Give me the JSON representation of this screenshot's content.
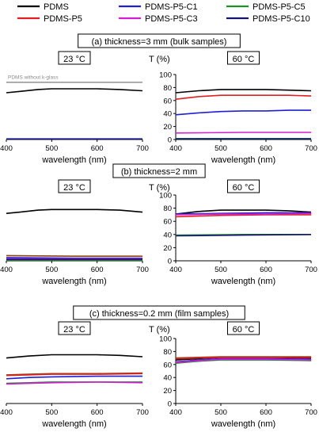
{
  "legend": [
    {
      "label": "PDMS",
      "color": "#000000"
    },
    {
      "label": "PDMS-P5-C1",
      "color": "#1f1fd6"
    },
    {
      "label": "PDMS-P5-C5",
      "color": "#1a8f2c"
    },
    {
      "label": "PDMS-P5",
      "color": "#e02020"
    },
    {
      "label": "PDMS-P5-C3",
      "color": "#d21fd2"
    },
    {
      "label": "PDMS-P5-C10",
      "color": "#141470"
    }
  ],
  "chart_data": [
    {
      "type": "line",
      "panel_title": "(a) thickness=3 mm (bulk samples)",
      "temperature": "23 °C",
      "xlabel": "wavelength (nm)",
      "ylabel": "",
      "xlim": [
        400,
        700
      ],
      "ylim": [
        0,
        100
      ],
      "xticks": [
        400,
        500,
        600,
        700
      ],
      "yticks": [],
      "annotation": {
        "text": "PDMS without k-glass",
        "x": 400,
        "y": 96
      },
      "series": [
        {
          "name": "PDMS without k-glass",
          "color": "#9a9a9a",
          "x": [
            400,
            700
          ],
          "y": [
            88,
            88
          ]
        },
        {
          "name": "PDMS",
          "color": "#000000",
          "x": [
            400,
            430,
            470,
            500,
            550,
            600,
            650,
            700
          ],
          "y": [
            72,
            74,
            77,
            78,
            78,
            78,
            77,
            75
          ]
        },
        {
          "name": "PDMS-P5-C1",
          "color": "#1f1fd6",
          "x": [
            400,
            700
          ],
          "y": [
            1,
            1
          ]
        },
        {
          "name": "PDMS-P5-C10",
          "color": "#141470",
          "x": [
            400,
            700
          ],
          "y": [
            0.6,
            0.6
          ]
        }
      ]
    },
    {
      "type": "line",
      "temperature": "60 °C",
      "xlabel": "wavelength (nm)",
      "ylabel": "T (%)",
      "xlim": [
        400,
        700
      ],
      "ylim": [
        0,
        100
      ],
      "xticks": [
        400,
        500,
        600,
        700
      ],
      "yticks": [
        0,
        20,
        40,
        60,
        80,
        100
      ],
      "series": [
        {
          "name": "PDMS",
          "color": "#000000",
          "x": [
            400,
            450,
            500,
            550,
            600,
            650,
            700
          ],
          "y": [
            72,
            75,
            77,
            77,
            77,
            76,
            75
          ]
        },
        {
          "name": "PDMS-P5",
          "color": "#e02020",
          "x": [
            400,
            450,
            500,
            550,
            600,
            650,
            700
          ],
          "y": [
            62,
            66,
            68,
            68,
            68,
            68,
            67
          ]
        },
        {
          "name": "PDMS-P5-C1",
          "color": "#1f1fd6",
          "x": [
            400,
            450,
            500,
            550,
            600,
            650,
            700
          ],
          "y": [
            38,
            41,
            43,
            44,
            44,
            45,
            45
          ]
        },
        {
          "name": "PDMS-P5-C3",
          "color": "#d21fd2",
          "x": [
            400,
            550,
            700
          ],
          "y": [
            10,
            11,
            11
          ]
        },
        {
          "name": "PDMS-P5-C5",
          "color": "#1a8f2c",
          "x": [
            400,
            700
          ],
          "y": [
            1.5,
            1.5
          ]
        },
        {
          "name": "PDMS-P5-C10",
          "color": "#141470",
          "x": [
            400,
            700
          ],
          "y": [
            0.8,
            0.8
          ]
        }
      ]
    },
    {
      "type": "line",
      "panel_title": "(b) thickness=2 mm",
      "temperature": "23 °C",
      "xlabel": "wavelength (nm)",
      "ylabel": "",
      "xlim": [
        400,
        700
      ],
      "ylim": [
        0,
        100
      ],
      "xticks": [
        400,
        500,
        600,
        700
      ],
      "yticks": [],
      "series": [
        {
          "name": "PDMS",
          "color": "#000000",
          "x": [
            400,
            430,
            470,
            500,
            550,
            600,
            650,
            700
          ],
          "y": [
            72,
            74,
            77,
            78,
            78,
            78,
            77,
            74
          ]
        },
        {
          "name": "PDMS-P5",
          "color": "#8b4513",
          "x": [
            400,
            550,
            700
          ],
          "y": [
            8,
            7,
            7
          ]
        },
        {
          "name": "PDMS-P5-C1",
          "color": "#1f1fd6",
          "x": [
            400,
            550,
            700
          ],
          "y": [
            5,
            4,
            4
          ]
        },
        {
          "name": "PDMS-P5-C3",
          "color": "#d21fd2",
          "x": [
            400,
            550,
            700
          ],
          "y": [
            3,
            3,
            3
          ]
        },
        {
          "name": "PDMS-P5-C5",
          "color": "#1a8f2c",
          "x": [
            400,
            700
          ],
          "y": [
            1,
            1
          ]
        },
        {
          "name": "PDMS-P5-C10",
          "color": "#141470",
          "x": [
            400,
            700
          ],
          "y": [
            2,
            2
          ]
        }
      ]
    },
    {
      "type": "line",
      "temperature": "60 °C",
      "xlabel": "wavelength (nm)",
      "ylabel": "T (%)",
      "xlim": [
        400,
        700
      ],
      "ylim": [
        0,
        100
      ],
      "xticks": [
        400,
        500,
        600,
        700
      ],
      "yticks": [
        0,
        20,
        40,
        60,
        80,
        100
      ],
      "series": [
        {
          "name": "PDMS",
          "color": "#000000",
          "x": [
            400,
            450,
            500,
            550,
            600,
            650,
            700
          ],
          "y": [
            71,
            75,
            77,
            77,
            77,
            76,
            74
          ]
        },
        {
          "name": "PDMS-P5",
          "color": "#e02020",
          "x": [
            400,
            450,
            500,
            600,
            700
          ],
          "y": [
            67,
            68,
            69,
            70,
            70
          ]
        },
        {
          "name": "PDMS-P5-C1",
          "color": "#1f1fd6",
          "x": [
            400,
            500,
            600,
            700
          ],
          "y": [
            71,
            72,
            73,
            73
          ]
        },
        {
          "name": "PDMS-P5-C3",
          "color": "#d21fd2",
          "x": [
            400,
            500,
            600,
            700
          ],
          "y": [
            70,
            71,
            71,
            72
          ]
        },
        {
          "name": "PDMS-P5-C5",
          "color": "#1a8f2c",
          "x": [
            400,
            550,
            700
          ],
          "y": [
            39,
            40,
            40
          ]
        },
        {
          "name": "PDMS-P5-C10",
          "color": "#141470",
          "x": [
            400,
            550,
            700
          ],
          "y": [
            38,
            39,
            40
          ]
        }
      ]
    },
    {
      "type": "line",
      "panel_title": "(c) thickness=0.2 mm (film samples)",
      "temperature": "23 °C",
      "xlabel": "wavelength (nm)",
      "ylabel": "",
      "xlim": [
        400,
        700
      ],
      "ylim": [
        0,
        100
      ],
      "xticks": [
        400,
        500,
        600,
        700
      ],
      "yticks": [],
      "series": [
        {
          "name": "PDMS",
          "color": "#000000",
          "x": [
            400,
            450,
            500,
            550,
            600,
            650,
            700
          ],
          "y": [
            70,
            73,
            75,
            75,
            75,
            74,
            72
          ]
        },
        {
          "name": "PDMS-P5",
          "color": "#8b4513",
          "x": [
            400,
            450,
            500,
            600,
            700
          ],
          "y": [
            44,
            45,
            46,
            46,
            47
          ]
        },
        {
          "name": "PDMS-P5-C1",
          "color": "#e02020",
          "x": [
            400,
            450,
            500,
            600,
            700
          ],
          "y": [
            43,
            44,
            45,
            45,
            46
          ]
        },
        {
          "name": "PDMS-P5-C3",
          "color": "#1f1fd6",
          "x": [
            400,
            450,
            500,
            600,
            700
          ],
          "y": [
            38,
            40,
            41,
            42,
            42
          ]
        },
        {
          "name": "PDMS-P5-C5",
          "color": "#1a8f2c",
          "x": [
            400,
            450,
            500,
            600,
            700
          ],
          "y": [
            31,
            32,
            33,
            33,
            33
          ]
        },
        {
          "name": "PDMS-P5-C10",
          "color": "#d21fd2",
          "x": [
            400,
            450,
            500,
            600,
            700
          ],
          "y": [
            30,
            31,
            32,
            33,
            32
          ]
        }
      ]
    },
    {
      "type": "line",
      "temperature": "60 °C",
      "xlabel": "wavelength (nm)",
      "ylabel": "T (%)",
      "xlim": [
        400,
        700
      ],
      "ylim": [
        0,
        100
      ],
      "xticks": [
        400,
        500,
        600,
        700
      ],
      "yticks": [
        0,
        20,
        40,
        60,
        80,
        100
      ],
      "series": [
        {
          "name": "PDMS",
          "color": "#000000",
          "x": [
            400,
            450,
            500,
            600,
            700
          ],
          "y": [
            67,
            69,
            71,
            71,
            70
          ]
        },
        {
          "name": "PDMS-P5",
          "color": "#8b4513",
          "x": [
            400,
            450,
            500,
            600,
            700
          ],
          "y": [
            70,
            71,
            72,
            72,
            72
          ]
        },
        {
          "name": "PDMS-P5-C1",
          "color": "#e02020",
          "x": [
            400,
            450,
            500,
            600,
            700
          ],
          "y": [
            69,
            70,
            71,
            71,
            71
          ]
        },
        {
          "name": "PDMS-P5-C3",
          "color": "#1f1fd6",
          "x": [
            400,
            450,
            500,
            600,
            700
          ],
          "y": [
            64,
            67,
            69,
            69,
            68
          ]
        },
        {
          "name": "PDMS-P5-C5",
          "color": "#1a8f2c",
          "x": [
            400,
            450,
            500,
            600,
            700
          ],
          "y": [
            62,
            65,
            67,
            67,
            66
          ]
        },
        {
          "name": "PDMS-P5-C10",
          "color": "#d21fd2",
          "x": [
            400,
            450,
            500,
            600,
            700
          ],
          "y": [
            63,
            66,
            68,
            68,
            67
          ]
        }
      ]
    }
  ]
}
